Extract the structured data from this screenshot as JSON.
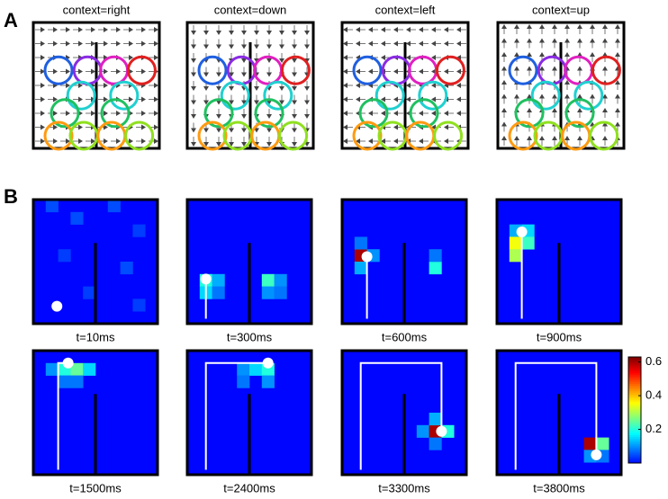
{
  "panel_a": {
    "label": "A",
    "contexts": [
      "context=right",
      "context=down",
      "context=left",
      "context=up"
    ]
  },
  "panel_b": {
    "label": "B",
    "frames": [
      {
        "time": "t=10ms",
        "cells": [
          {
            "x": 1,
            "y": 0,
            "value": 0.05
          },
          {
            "x": 3,
            "y": 1,
            "value": 0.05
          },
          {
            "x": 6,
            "y": 0,
            "value": 0.05
          },
          {
            "x": 8,
            "y": 2,
            "value": 0.04
          },
          {
            "x": 2,
            "y": 4,
            "value": 0.04
          },
          {
            "x": 7,
            "y": 5,
            "value": 0.05
          },
          {
            "x": 4,
            "y": 7,
            "value": 0.04
          },
          {
            "x": 8,
            "y": 8,
            "value": 0.04
          }
        ]
      },
      {
        "time": "t=300ms",
        "cells": [
          {
            "x": 1,
            "y": 6,
            "value": 0.2
          },
          {
            "x": 2,
            "y": 6,
            "value": 0.12
          },
          {
            "x": 1,
            "y": 7,
            "value": 0.15
          },
          {
            "x": 2,
            "y": 7,
            "value": 0.08
          },
          {
            "x": 6,
            "y": 6,
            "value": 0.22
          },
          {
            "x": 7,
            "y": 6,
            "value": 0.1
          },
          {
            "x": 6,
            "y": 7,
            "value": 0.1
          },
          {
            "x": 7,
            "y": 7,
            "value": 0.08
          }
        ]
      },
      {
        "time": "t=600ms",
        "cells": [
          {
            "x": 1,
            "y": 4,
            "value": 0.6
          },
          {
            "x": 2,
            "y": 4,
            "value": 0.1
          },
          {
            "x": 1,
            "y": 3,
            "value": 0.08
          },
          {
            "x": 1,
            "y": 5,
            "value": 0.12
          },
          {
            "x": 7,
            "y": 5,
            "value": 0.2
          },
          {
            "x": 7,
            "y": 4,
            "value": 0.08
          }
        ]
      },
      {
        "time": "t=900ms",
        "cells": [
          {
            "x": 1,
            "y": 2,
            "value": 0.12
          },
          {
            "x": 2,
            "y": 2,
            "value": 0.15
          },
          {
            "x": 1,
            "y": 3,
            "value": 0.35
          },
          {
            "x": 2,
            "y": 3,
            "value": 0.22
          },
          {
            "x": 1,
            "y": 4,
            "value": 0.3
          }
        ]
      },
      {
        "time": "t=1500ms",
        "cells": [
          {
            "x": 1,
            "y": 1,
            "value": 0.1
          },
          {
            "x": 2,
            "y": 1,
            "value": 0.2
          },
          {
            "x": 3,
            "y": 1,
            "value": 0.25
          },
          {
            "x": 4,
            "y": 1,
            "value": 0.15
          },
          {
            "x": 2,
            "y": 2,
            "value": 0.08
          },
          {
            "x": 3,
            "y": 2,
            "value": 0.08
          }
        ]
      },
      {
        "time": "t=2400ms",
        "cells": [
          {
            "x": 4,
            "y": 1,
            "value": 0.1
          },
          {
            "x": 5,
            "y": 1,
            "value": 0.15
          },
          {
            "x": 6,
            "y": 1,
            "value": 0.2
          },
          {
            "x": 4,
            "y": 2,
            "value": 0.08
          },
          {
            "x": 6,
            "y": 2,
            "value": 0.1
          }
        ]
      },
      {
        "time": "t=3300ms",
        "cells": [
          {
            "x": 6,
            "y": 6,
            "value": 0.1
          },
          {
            "x": 7,
            "y": 6,
            "value": 0.6
          },
          {
            "x": 8,
            "y": 6,
            "value": 0.2
          },
          {
            "x": 7,
            "y": 5,
            "value": 0.12
          },
          {
            "x": 7,
            "y": 7,
            "value": 0.08
          }
        ]
      },
      {
        "time": "t=3800ms",
        "cells": [
          {
            "x": 7,
            "y": 7,
            "value": 0.6
          },
          {
            "x": 8,
            "y": 7,
            "value": 0.25
          },
          {
            "x": 7,
            "y": 8,
            "value": 0.1
          },
          {
            "x": 8,
            "y": 8,
            "value": 0.08
          }
        ]
      }
    ]
  },
  "colorbar": {
    "lim": [
      0,
      0.63
    ],
    "ticks": [
      0.2,
      0.4,
      0.6
    ]
  }
}
